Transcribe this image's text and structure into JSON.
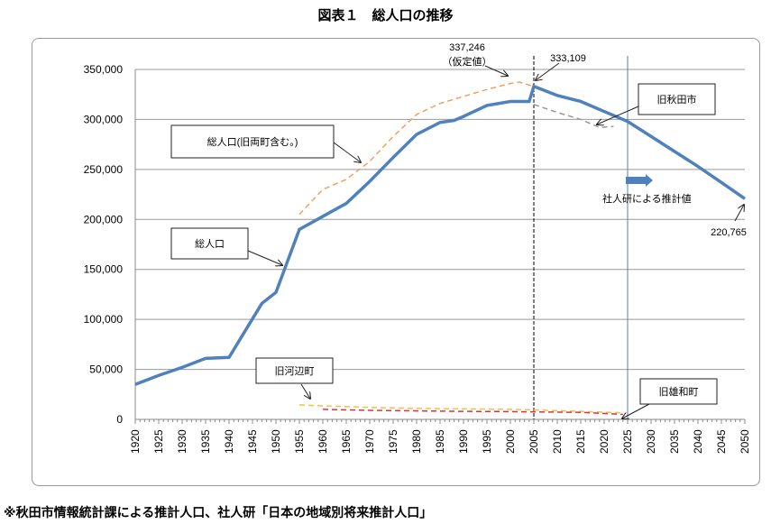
{
  "chart_data": {
    "type": "line",
    "title": "図表１　総人口の推移",
    "xlabel": "",
    "ylabel": "",
    "xlim": [
      1920,
      2050
    ],
    "ylim": [
      0,
      350000
    ],
    "x_ticks": [
      1920,
      1925,
      1930,
      1935,
      1940,
      1945,
      1950,
      1955,
      1960,
      1965,
      1970,
      1975,
      1980,
      1985,
      1990,
      1995,
      2000,
      2005,
      2010,
      2015,
      2020,
      2025,
      2030,
      2035,
      2040,
      2045,
      2050
    ],
    "y_ticks": [
      "0",
      "50,000",
      "100,000",
      "150,000",
      "200,000",
      "250,000",
      "300,000",
      "350,000"
    ],
    "y_tick_values": [
      0,
      50000,
      100000,
      150000,
      200000,
      250000,
      300000,
      350000
    ],
    "grid": "horizontal",
    "series": [
      {
        "name": "総人口",
        "style": "solid",
        "color": "#4f81bd",
        "x": [
          1920,
          1925,
          1930,
          1935,
          1940,
          1947,
          1950,
          1955,
          1960,
          1965,
          1970,
          1975,
          1980,
          1985,
          1988,
          1990,
          1995,
          2000,
          2004,
          2005,
          2010,
          2015,
          2020,
          2025,
          2030,
          2035,
          2040,
          2045,
          2050
        ],
        "values": [
          35000,
          44000,
          52000,
          61000,
          62000,
          116000,
          127000,
          190000,
          203000,
          216000,
          238000,
          262000,
          285000,
          297000,
          299000,
          303000,
          314000,
          318000,
          318000,
          333109,
          324000,
          318000,
          308000,
          298000,
          283000,
          268000,
          253000,
          237000,
          220765
        ]
      },
      {
        "name": "総人口(旧両町含む。)",
        "style": "dashed",
        "color": "#f0a060",
        "x": [
          1955,
          1960,
          1965,
          1970,
          1975,
          1980,
          1985,
          1990,
          1995,
          2000,
          2002,
          2005
        ],
        "values": [
          205000,
          230000,
          240000,
          258000,
          283000,
          305000,
          316000,
          323000,
          330000,
          336000,
          337246,
          333000
        ]
      },
      {
        "name": "旧秋田市",
        "style": "dashed",
        "color": "#999999",
        "x": [
          2005,
          2010,
          2015,
          2019,
          2022
        ],
        "values": [
          315000,
          307000,
          300000,
          292000,
          293000
        ]
      },
      {
        "name": "旧河辺町",
        "style": "dashed",
        "color": "#f5c040",
        "x": [
          1955,
          1960,
          1970,
          1980,
          1990,
          2000,
          2005,
          2015,
          2024
        ],
        "values": [
          14500,
          13500,
          12000,
          11000,
          10500,
          10000,
          9500,
          8000,
          6500
        ]
      },
      {
        "name": "旧雄和町",
        "style": "dashed",
        "color": "#e03040",
        "x": [
          1960,
          1970,
          1980,
          1990,
          2000,
          2005,
          2015,
          2024
        ],
        "values": [
          10000,
          9000,
          8500,
          8000,
          7800,
          7500,
          7000,
          5000
        ]
      }
    ],
    "vlines": [
      {
        "x": 2005,
        "style": "dashed",
        "color": "#000000"
      },
      {
        "x": 2025,
        "style": "solid",
        "color": "#5a7fa8"
      }
    ],
    "annotations": {
      "peak_value": "337,246",
      "peak_note": "（仮定値）",
      "v2005": "333,109",
      "v2050": "220,765",
      "box_total_incl": "総人口(旧両町含む。)",
      "box_total": "総人口",
      "box_akita": "旧秋田市",
      "box_kawabe": "旧河辺町",
      "box_yuwa": "旧雄和町",
      "projection": "社人研による推計値"
    }
  },
  "footnote": "※秋田市情報統計課による推計人口、社人研「日本の地域別将来推計人口」"
}
